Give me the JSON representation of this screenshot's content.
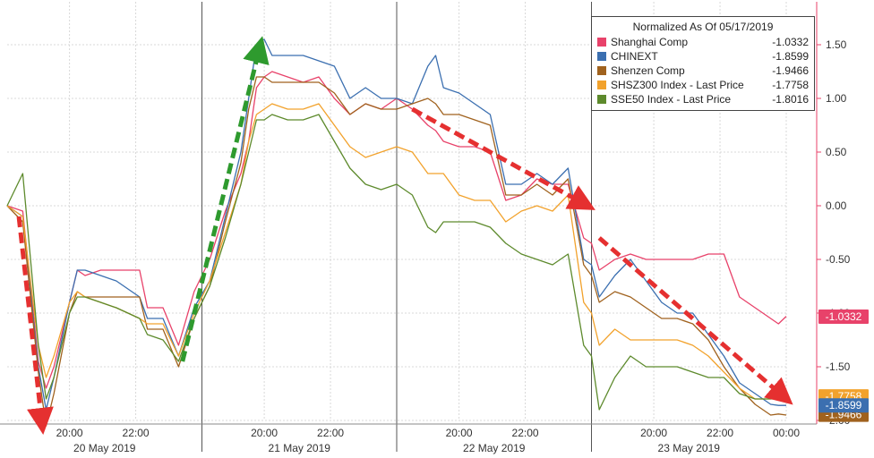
{
  "chart_data": {
    "type": "line",
    "legend": {
      "title": "Normalized As Of 05/17/2019",
      "placement": "top-right"
    },
    "ylim": [
      -2.0,
      1.9
    ],
    "y_ticks": [
      "1.50",
      "1.00",
      "0.50",
      "0.00",
      "-0.50",
      "-1.00",
      "-1.50",
      "-2.00"
    ],
    "y_tick_values": [
      1.5,
      1.0,
      0.5,
      0.0,
      -0.5,
      -1.0,
      -1.5,
      -2.0
    ],
    "xlim": [
      0,
      100
    ],
    "time_ticks": [
      {
        "x": 8.0,
        "label": "20:00"
      },
      {
        "x": 16.5,
        "label": "22:00"
      },
      {
        "x": 33.0,
        "label": "20:00"
      },
      {
        "x": 41.5,
        "label": "22:00"
      },
      {
        "x": 58.0,
        "label": "20:00"
      },
      {
        "x": 66.5,
        "label": "22:00"
      },
      {
        "x": 83.0,
        "label": "20:00"
      },
      {
        "x": 91.5,
        "label": "22:00"
      },
      {
        "x": 100.0,
        "label": "00:00"
      }
    ],
    "day_labels": [
      {
        "x": 12.5,
        "label": "20 May 2019"
      },
      {
        "x": 37.5,
        "label": "21 May 2019"
      },
      {
        "x": 62.5,
        "label": "22 May 2019"
      },
      {
        "x": 87.5,
        "label": "23 May 2019"
      }
    ],
    "day_separators": [
      25.0,
      50.0,
      75.0
    ],
    "grid": true,
    "series": [
      {
        "name": "Shanghai Comp",
        "last": "-1.0332",
        "color": "#e8426a",
        "x": [
          0,
          2,
          4,
          5,
          6,
          8,
          9,
          10,
          12,
          14,
          17,
          18,
          20,
          22,
          24,
          26,
          28,
          30,
          31,
          32,
          33,
          34,
          36,
          38,
          40,
          42,
          44,
          46,
          48,
          50,
          52,
          54,
          55,
          56,
          58,
          60,
          62,
          64,
          66,
          68,
          70,
          72,
          74,
          75,
          76,
          78,
          80,
          82,
          84,
          86,
          88,
          90,
          92,
          94,
          96,
          98,
          99,
          100
        ],
        "y": [
          0.0,
          -0.05,
          -1.45,
          -1.7,
          -1.5,
          -0.9,
          -0.6,
          -0.65,
          -0.6,
          -0.6,
          -0.6,
          -0.95,
          -0.95,
          -1.3,
          -0.8,
          -0.5,
          -0.05,
          0.3,
          0.6,
          1.1,
          1.2,
          1.25,
          1.2,
          1.15,
          1.2,
          1.0,
          0.85,
          0.95,
          0.9,
          1.0,
          0.9,
          0.75,
          0.7,
          0.6,
          0.55,
          0.55,
          0.5,
          0.05,
          0.1,
          0.25,
          0.2,
          0.2,
          -0.3,
          -0.35,
          -0.6,
          -0.5,
          -0.45,
          -0.5,
          -0.5,
          -0.5,
          -0.5,
          -0.45,
          -0.45,
          -0.85,
          -0.95,
          -1.05,
          -1.1,
          -1.03
        ]
      },
      {
        "name": "CHINEXT",
        "last": "-1.8599",
        "color": "#3b6fb0",
        "x": [
          0,
          2,
          4,
          5,
          6,
          8,
          9,
          10,
          12,
          14,
          17,
          18,
          20,
          22,
          24,
          26,
          28,
          30,
          31,
          32,
          33,
          34,
          36,
          38,
          40,
          42,
          44,
          46,
          48,
          50,
          52,
          54,
          55,
          56,
          58,
          60,
          62,
          64,
          66,
          68,
          70,
          72,
          74,
          75,
          76,
          78,
          80,
          82,
          84,
          86,
          88,
          90,
          92,
          94,
          96,
          98,
          99,
          100
        ],
        "y": [
          0.0,
          -0.1,
          -1.5,
          -1.9,
          -1.6,
          -0.9,
          -0.6,
          -0.6,
          -0.65,
          -0.7,
          -0.85,
          -1.05,
          -1.05,
          -1.4,
          -0.95,
          -0.7,
          -0.1,
          0.5,
          1.0,
          1.5,
          1.55,
          1.4,
          1.4,
          1.4,
          1.35,
          1.3,
          1.0,
          1.1,
          1.0,
          1.0,
          0.95,
          1.3,
          1.4,
          1.1,
          1.05,
          0.95,
          0.85,
          0.2,
          0.2,
          0.3,
          0.2,
          0.35,
          -0.5,
          -0.55,
          -0.85,
          -0.65,
          -0.5,
          -0.7,
          -0.9,
          -1.0,
          -1.0,
          -1.2,
          -1.4,
          -1.65,
          -1.75,
          -1.85,
          -1.86,
          -1.86
        ]
      },
      {
        "name": "Shenzen Comp",
        "last": "-1.9466",
        "color": "#a0621e",
        "x": [
          0,
          2,
          4,
          5,
          6,
          8,
          9,
          10,
          12,
          14,
          17,
          18,
          20,
          22,
          24,
          26,
          28,
          30,
          31,
          32,
          33,
          34,
          36,
          38,
          40,
          42,
          44,
          46,
          48,
          50,
          52,
          54,
          55,
          56,
          58,
          60,
          62,
          64,
          66,
          68,
          70,
          72,
          74,
          75,
          76,
          78,
          80,
          82,
          84,
          86,
          88,
          90,
          92,
          94,
          96,
          98,
          99,
          100
        ],
        "y": [
          0.0,
          -0.15,
          -1.55,
          -2.05,
          -1.75,
          -1.0,
          -0.8,
          -0.85,
          -0.85,
          -0.85,
          -0.85,
          -1.15,
          -1.15,
          -1.5,
          -1.05,
          -0.75,
          -0.15,
          0.4,
          0.9,
          1.2,
          1.2,
          1.15,
          1.15,
          1.15,
          1.15,
          1.05,
          0.85,
          0.95,
          0.9,
          0.9,
          0.95,
          1.0,
          0.95,
          0.85,
          0.85,
          0.8,
          0.75,
          0.1,
          0.1,
          0.2,
          0.1,
          0.25,
          -0.55,
          -0.65,
          -0.9,
          -0.8,
          -0.85,
          -0.95,
          -1.05,
          -1.05,
          -1.1,
          -1.25,
          -1.5,
          -1.7,
          -1.85,
          -1.95,
          -1.94,
          -1.95
        ]
      },
      {
        "name": "SHSZ300 Index - Last Price",
        "last": "-1.7758",
        "color": "#f2a22c",
        "x": [
          0,
          2,
          4,
          5,
          6,
          8,
          9,
          10,
          12,
          14,
          17,
          18,
          20,
          22,
          24,
          26,
          28,
          30,
          31,
          32,
          33,
          34,
          36,
          38,
          40,
          42,
          44,
          46,
          48,
          50,
          52,
          54,
          55,
          56,
          58,
          60,
          62,
          64,
          66,
          68,
          70,
          72,
          74,
          75,
          76,
          78,
          80,
          82,
          84,
          86,
          88,
          90,
          92,
          94,
          96,
          98,
          99,
          100
        ],
        "y": [
          0.0,
          -0.1,
          -1.3,
          -1.6,
          -1.4,
          -0.9,
          -0.8,
          -0.85,
          -0.9,
          -0.95,
          -1.05,
          -1.1,
          -1.1,
          -1.4,
          -1.0,
          -0.7,
          -0.25,
          0.2,
          0.6,
          0.85,
          0.9,
          0.95,
          0.9,
          0.9,
          0.95,
          0.75,
          0.55,
          0.45,
          0.5,
          0.55,
          0.5,
          0.3,
          0.3,
          0.3,
          0.1,
          0.05,
          0.05,
          -0.15,
          -0.05,
          0.0,
          -0.05,
          0.1,
          -0.9,
          -1.0,
          -1.3,
          -1.15,
          -1.25,
          -1.25,
          -1.25,
          -1.25,
          -1.3,
          -1.4,
          -1.55,
          -1.7,
          -1.8,
          -1.8,
          -1.78,
          -1.78
        ]
      },
      {
        "name": "SSE50 Index - Last Price",
        "last": "-1.8016",
        "color": "#5d8a2c",
        "x": [
          0,
          2,
          4,
          5,
          6,
          8,
          9,
          10,
          12,
          14,
          17,
          18,
          20,
          22,
          24,
          26,
          28,
          30,
          31,
          32,
          33,
          34,
          36,
          38,
          40,
          42,
          44,
          46,
          48,
          50,
          52,
          54,
          55,
          56,
          58,
          60,
          62,
          64,
          66,
          68,
          70,
          72,
          74,
          75,
          76,
          78,
          80,
          82,
          84,
          86,
          88,
          90,
          92,
          94,
          96,
          98,
          99,
          100
        ],
        "y": [
          0.0,
          0.3,
          -1.3,
          -1.8,
          -1.6,
          -1.0,
          -0.85,
          -0.85,
          -0.9,
          -0.95,
          -1.05,
          -1.2,
          -1.25,
          -1.45,
          -1.05,
          -0.75,
          -0.3,
          0.2,
          0.5,
          0.8,
          0.8,
          0.85,
          0.8,
          0.8,
          0.85,
          0.6,
          0.35,
          0.2,
          0.15,
          0.2,
          0.1,
          -0.2,
          -0.25,
          -0.15,
          -0.15,
          -0.15,
          -0.2,
          -0.35,
          -0.45,
          -0.5,
          -0.55,
          -0.45,
          -1.3,
          -1.4,
          -1.9,
          -1.6,
          -1.4,
          -1.5,
          -1.5,
          -1.5,
          -1.55,
          -1.6,
          -1.6,
          -1.75,
          -1.8,
          -1.8,
          -1.8,
          -1.8
        ]
      }
    ],
    "annotations": [
      {
        "type": "arrow",
        "color": "#e53030",
        "from": [
          1.5,
          -0.1
        ],
        "to": [
          4.5,
          -2.05
        ]
      },
      {
        "type": "arrow",
        "color": "#2e9a2e",
        "from": [
          22.5,
          -1.45
        ],
        "to": [
          32.5,
          1.5
        ]
      },
      {
        "type": "arrow",
        "color": "#e53030",
        "from": [
          52.0,
          0.9
        ],
        "to": [
          74.5,
          0.0
        ]
      },
      {
        "type": "arrow",
        "color": "#e53030",
        "from": [
          76.0,
          -0.3
        ],
        "to": [
          100.0,
          -1.8
        ]
      }
    ],
    "value_tags": [
      {
        "series": "Shanghai Comp",
        "label": "-1.0332",
        "y": -1.0332,
        "color": "#e8426a"
      },
      {
        "series": "SHSZ300 Index - Last Price",
        "label": "-1.7758",
        "y": -1.7758,
        "color": "#f2a22c"
      },
      {
        "series": "Shenzen Comp",
        "label": "-1.9466",
        "y": -1.9466,
        "color": "#a0621e"
      },
      {
        "series": "CHINEXT",
        "label": "-1.8599",
        "y": -1.8599,
        "color": "#3b6fb0"
      }
    ]
  }
}
